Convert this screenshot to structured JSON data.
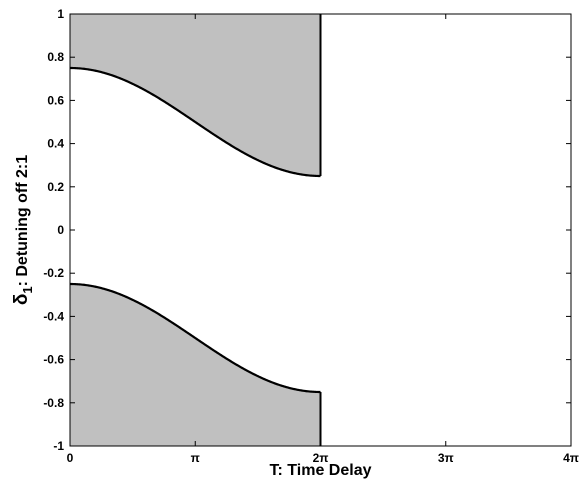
{
  "chart_data": {
    "type": "area",
    "xlabel": "T:  Time Delay",
    "ylabel": "δ1:  Detuning off 2:1",
    "ylabel_main": "δ",
    "ylabel_sub": "1",
    "ylabel_rest": ":  Detuning off 2:1",
    "xlim": [
      0,
      12.566370614359172
    ],
    "ylim": [
      -1,
      1
    ],
    "x_ticks": [
      {
        "value": 0,
        "label": "0"
      },
      {
        "value": 3.141592653589793,
        "label": "π"
      },
      {
        "value": 6.283185307179586,
        "label": "2π"
      },
      {
        "value": 9.42477796076938,
        "label": "3π"
      },
      {
        "value": 12.566370614359172,
        "label": "4π"
      }
    ],
    "y_ticks": [
      {
        "value": 1,
        "label": "1"
      },
      {
        "value": 0.8,
        "label": "0.8"
      },
      {
        "value": 0.6,
        "label": "0.6"
      },
      {
        "value": 0.4,
        "label": "0.4"
      },
      {
        "value": 0.2,
        "label": "0.2"
      },
      {
        "value": 0,
        "label": "0"
      },
      {
        "value": -0.2,
        "label": "-0.2"
      },
      {
        "value": -0.4,
        "label": "-0.4"
      },
      {
        "value": -0.6,
        "label": "-0.6"
      },
      {
        "value": -0.8,
        "label": "-0.8"
      },
      {
        "value": -1,
        "label": "-1"
      }
    ],
    "grid": false,
    "legend": "none",
    "fill_color": "#c0c0c0",
    "line_color": "#000000",
    "series": [
      {
        "x": [
          0,
          0.5236,
          1.0472,
          1.5708,
          2.0944,
          2.618,
          3.1416,
          3.6652,
          4.1888,
          4.7124,
          5.236,
          5.7596,
          6.2832
        ],
        "y": [
          0.75,
          0.7466,
          0.7366,
          0.7207,
          0.6996,
          0.6747,
          0.6472,
          0.4553,
          0.3695,
          0.3024,
          0.2649,
          0.2527,
          0.25
        ],
        "fill_to": 1
      },
      {
        "x": [
          0,
          0.5236,
          1.0472,
          1.5708,
          2.0944,
          2.618,
          3.1416,
          3.6652,
          4.1888,
          4.7124,
          5.236,
          5.7596,
          6.2832
        ],
        "y": [
          -0.25,
          -0.2534,
          -0.2634,
          -0.2793,
          -0.3004,
          -0.3253,
          -0.3528,
          -0.5447,
          -0.6305,
          -0.6976,
          -0.7351,
          -0.7473,
          -0.75
        ],
        "fill_to": -1
      }
    ]
  }
}
